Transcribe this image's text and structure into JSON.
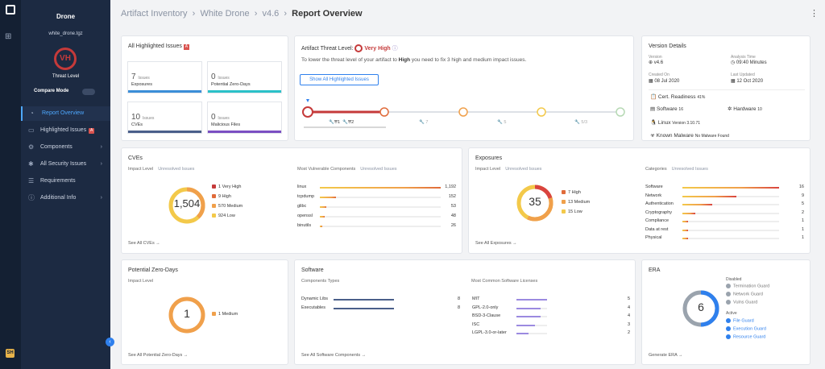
{
  "sidebar": {
    "product": "Drone",
    "file": "white_drone.tgz",
    "threat_badge": "VH",
    "threat_label": "Threat Level",
    "compare_mode": "Compare Mode",
    "items": [
      {
        "label": "Report Overview"
      },
      {
        "label": "Highlighted Issues"
      },
      {
        "label": "Components"
      },
      {
        "label": "All Security Issues"
      },
      {
        "label": "Requirements"
      },
      {
        "label": "Additional Info"
      }
    ]
  },
  "breadcrumb": {
    "a": "Artifact Inventory",
    "b": "White Drone",
    "c": "v4.6",
    "d": "Report Overview"
  },
  "highlighted": {
    "title": "All Highlighted Issues",
    "tiles": [
      {
        "num": "7",
        "unit": "Issues",
        "label": "Exposures",
        "color": "#3b8ed8"
      },
      {
        "num": "0",
        "unit": "Issues",
        "label": "Potential Zero-Days",
        "color": "#2bc1c8"
      },
      {
        "num": "10",
        "unit": "Issues",
        "label": "CVEs",
        "color": "#4a5f8a"
      },
      {
        "num": "0",
        "unit": "Issues",
        "label": "Malicious Files",
        "color": "#7b4fc2"
      }
    ]
  },
  "threat": {
    "title": "Artifact Threat Level:",
    "level": "Very High",
    "desc_a": "To lower the threat level of your artifact to ",
    "desc_b": "High",
    "desc_c": " you need to fix 3 high and medium impact issues.",
    "button": "Show All Highlighted Issues",
    "steps": [
      {
        "a": "1",
        "b": "2"
      },
      {
        "a": "7"
      },
      {
        "a": "5"
      },
      {
        "a": "5/3"
      }
    ]
  },
  "version": {
    "title": "Version Details",
    "version_l": "Version",
    "version_v": "v4.6",
    "time_l": "Analysis Time",
    "time_v": "09:40 Minutes",
    "created_l": "Created On",
    "created_v": "08 Jul 2020",
    "updated_l": "Last Updated",
    "updated_v": "12 Oct 2020",
    "cert": "Cert. Readiness",
    "cert_pct": "41%",
    "software": "Software",
    "software_n": "16",
    "hardware": "Hardware",
    "hardware_n": "10",
    "linux": "Linux",
    "linux_v": "Version 3.10.71",
    "malware": "Known Malware",
    "malware_v": "No Malware Found"
  },
  "cves": {
    "title": "CVEs",
    "impact": "Impact Level",
    "unresolved": "Unresolved Issues",
    "total": "1,504",
    "legend": [
      {
        "label": "1 Very High",
        "color": "#c53a3a"
      },
      {
        "label": "9 High",
        "color": "#e06b3a"
      },
      {
        "label": "570 Medium",
        "color": "#f0a04b"
      },
      {
        "label": "924 Low",
        "color": "#f3c94a"
      }
    ],
    "mvc_title": "Most Vulnerable Components",
    "mvc_unresolved": "Unresolved Issues",
    "components": [
      {
        "name": "linux",
        "value": "1,192",
        "pct": 1.0
      },
      {
        "name": "tcpdump",
        "value": "152",
        "pct": 0.13
      },
      {
        "name": "glibc",
        "value": "53",
        "pct": 0.05
      },
      {
        "name": "openssl",
        "value": "48",
        "pct": 0.04
      },
      {
        "name": "binutils",
        "value": "26",
        "pct": 0.02
      }
    ],
    "see_all": "See All CVEs"
  },
  "exposures": {
    "title": "Exposures",
    "impact": "Impact Level",
    "unresolved": "Unresolved Issues",
    "total": "35",
    "legend": [
      {
        "label": "7 High",
        "color": "#e06b3a"
      },
      {
        "label": "13 Medium",
        "color": "#f0a04b"
      },
      {
        "label": "15 Low",
        "color": "#f3c94a"
      }
    ],
    "cat_title": "Categories",
    "cat_unresolved": "Unresolved Issues",
    "categories": [
      {
        "name": "Software",
        "value": "16",
        "pct": 1.0
      },
      {
        "name": "Network",
        "value": "9",
        "pct": 0.56
      },
      {
        "name": "Authentication",
        "value": "5",
        "pct": 0.31
      },
      {
        "name": "Cryptography",
        "value": "2",
        "pct": 0.13
      },
      {
        "name": "Compliance",
        "value": "1",
        "pct": 0.06
      },
      {
        "name": "Data at rest",
        "value": "1",
        "pct": 0.06
      },
      {
        "name": "Physical",
        "value": "1",
        "pct": 0.06
      }
    ],
    "see_all": "See All Exposures"
  },
  "zero_days": {
    "title": "Potential Zero-Days",
    "impact": "Impact Level",
    "total": "1",
    "legend": "1 Medium",
    "see_all": "See All Potential Zero-Days"
  },
  "software": {
    "title": "Software",
    "types_title": "Components Types",
    "types": [
      {
        "name": "Dynamic Libs",
        "value": "8",
        "pct": 1.0
      },
      {
        "name": "Executables",
        "value": "8",
        "pct": 1.0
      }
    ],
    "lic_title": "Most Common Software Licenses",
    "licenses": [
      {
        "name": "MIT",
        "value": "5",
        "pct": 1.0
      },
      {
        "name": "GPL-2.0-only",
        "value": "4",
        "pct": 0.8
      },
      {
        "name": "BSD-3-Clause",
        "value": "4",
        "pct": 0.8
      },
      {
        "name": "ISC",
        "value": "3",
        "pct": 0.6
      },
      {
        "name": "LGPL-3.0-or-later",
        "value": "2",
        "pct": 0.4
      }
    ],
    "see_all": "See All Software Components"
  },
  "era": {
    "title": "ERA",
    "total": "6",
    "disabled_title": "Disabled",
    "disabled": [
      "Termination Guard",
      "Network Guard",
      "Vulns Guard"
    ],
    "active_title": "Active",
    "active": [
      "File Guard",
      "Execution Guard",
      "Resource Guard"
    ],
    "generate": "Generate ERA"
  }
}
